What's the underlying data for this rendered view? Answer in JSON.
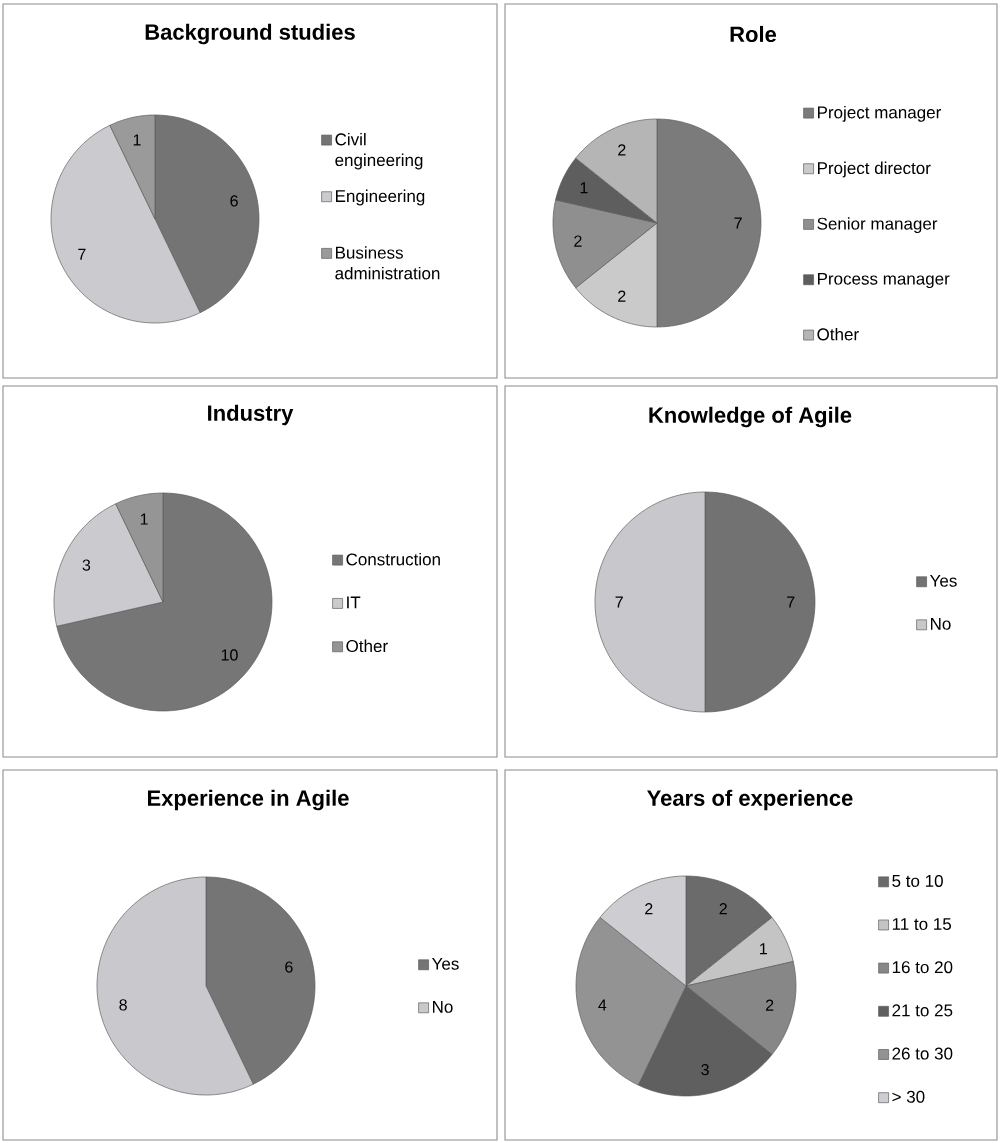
{
  "chart_data": [
    {
      "type": "pie",
      "title": "Background studies",
      "categories": [
        "Civil engineering",
        "Engineering",
        "Business administration"
      ],
      "values": [
        6,
        7,
        1
      ],
      "colors": [
        "#747474",
        "#cbcbcf",
        "#9a9a9a"
      ],
      "data_labels": true,
      "legend": "right"
    },
    {
      "type": "pie",
      "title": "Role",
      "categories": [
        "Project manager",
        "Project director",
        "Senior manager",
        "Process manager",
        "Other"
      ],
      "values": [
        7,
        2,
        2,
        1,
        2
      ],
      "colors": [
        "#7b7b7b",
        "#cacaca",
        "#8f8f8f",
        "#5e5e5e",
        "#b5b5b5"
      ],
      "data_labels": true,
      "legend": "right"
    },
    {
      "type": "pie",
      "title": "Industry",
      "categories": [
        "Construction",
        "IT",
        "Other"
      ],
      "values": [
        10,
        3,
        1
      ],
      "colors": [
        "#767676",
        "#cbcbcf",
        "#959595"
      ],
      "data_labels": true,
      "legend": "right"
    },
    {
      "type": "pie",
      "title": "Knowledge of Agile",
      "categories": [
        "Yes",
        "No"
      ],
      "values": [
        7,
        7
      ],
      "colors": [
        "#727272",
        "#c8c8cc"
      ],
      "data_labels": true,
      "legend": "right"
    },
    {
      "type": "pie",
      "title": "Experience in Agile",
      "categories": [
        "Yes",
        "No"
      ],
      "values": [
        6,
        8
      ],
      "colors": [
        "#757575",
        "#c9c9cd"
      ],
      "data_labels": true,
      "legend": "right"
    },
    {
      "type": "pie",
      "title": "Years of experience",
      "categories": [
        "5 to 10",
        "11 to 15",
        "16 to 20",
        "21 to 25",
        "26 to 30",
        "> 30"
      ],
      "values": [
        2,
        1,
        2,
        3,
        4,
        2
      ],
      "colors": [
        "#6b6b6b",
        "#c4c4c4",
        "#878787",
        "#5f5f5f",
        "#939393",
        "#cdcdd2"
      ],
      "data_labels": true,
      "legend": "right"
    }
  ]
}
